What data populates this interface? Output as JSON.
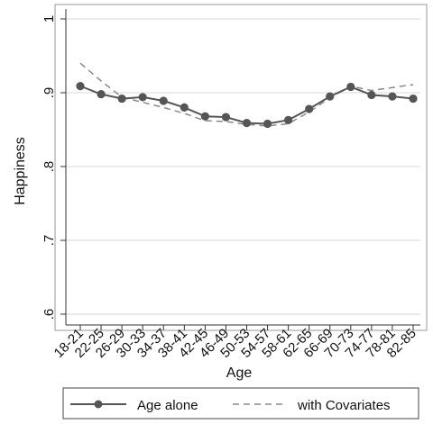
{
  "chart_data": {
    "type": "line",
    "xlabel": "Age",
    "ylabel": "Happiness",
    "ylim": [
      0.6,
      1.0
    ],
    "y_ticks": [
      {
        "value": 0.6,
        "label": ".6"
      },
      {
        "value": 0.7,
        "label": ".7"
      },
      {
        "value": 0.8,
        "label": ".8"
      },
      {
        "value": 0.9,
        "label": ".9"
      },
      {
        "value": 1.0,
        "label": "1"
      }
    ],
    "grid": true,
    "legend_position": "bottom",
    "categories": [
      "18-21",
      "22-25",
      "26-29",
      "30-33",
      "34-37",
      "38-41",
      "42-45",
      "46-49",
      "50-53",
      "54-57",
      "58-61",
      "62-65",
      "66-69",
      "70-73",
      "74-77",
      "78-81",
      "82-85"
    ],
    "series": [
      {
        "name": "Age alone",
        "style": "solid-markers",
        "color": "#555555",
        "values": [
          0.909,
          0.898,
          0.892,
          0.894,
          0.889,
          0.88,
          0.868,
          0.867,
          0.859,
          0.858,
          0.863,
          0.878,
          0.895,
          0.908,
          0.897,
          0.895,
          0.892
        ]
      },
      {
        "name": "with Covariates",
        "style": "dashed",
        "color": "#8a8a8a",
        "values": [
          0.94,
          0.916,
          0.894,
          0.887,
          0.88,
          0.872,
          0.862,
          0.861,
          0.857,
          0.855,
          0.858,
          0.874,
          0.893,
          0.909,
          0.903,
          0.907,
          0.911
        ]
      }
    ]
  }
}
